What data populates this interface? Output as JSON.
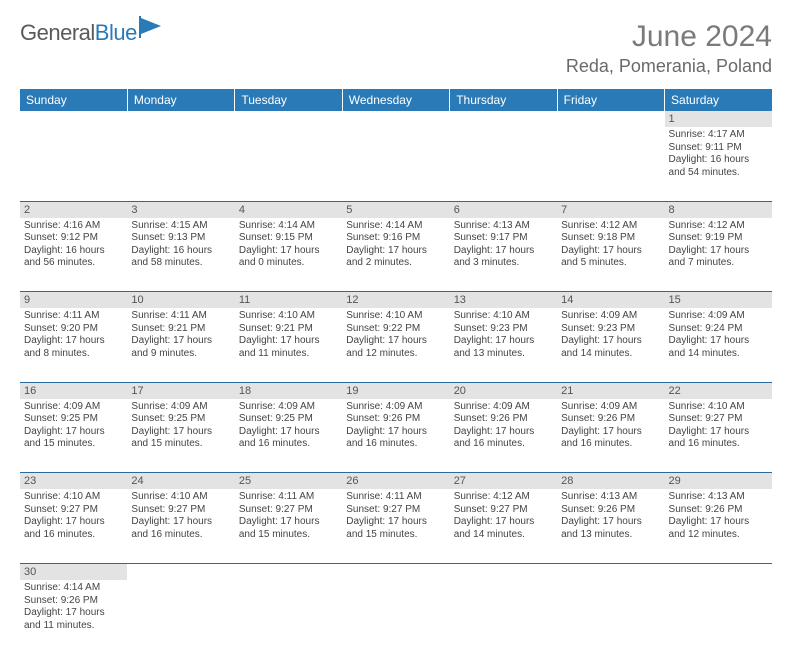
{
  "brand": {
    "part1": "General",
    "part2": "Blue"
  },
  "title": "June 2024",
  "location": "Reda, Pomerania, Poland",
  "colors": {
    "header_bg": "#2a7ab8",
    "header_text": "#ffffff",
    "daynum_bg": "#e3e3e3",
    "row_border": "#2a6aa0",
    "title_color": "#7a7a7a",
    "location_color": "#6a6a6a"
  },
  "weekdays": [
    "Sunday",
    "Monday",
    "Tuesday",
    "Wednesday",
    "Thursday",
    "Friday",
    "Saturday"
  ],
  "weeks": [
    {
      "days": [
        null,
        null,
        null,
        null,
        null,
        null,
        {
          "n": "1",
          "sunrise": "Sunrise: 4:17 AM",
          "sunset": "Sunset: 9:11 PM",
          "day1": "Daylight: 16 hours",
          "day2": "and 54 minutes."
        }
      ]
    },
    {
      "days": [
        {
          "n": "2",
          "sunrise": "Sunrise: 4:16 AM",
          "sunset": "Sunset: 9:12 PM",
          "day1": "Daylight: 16 hours",
          "day2": "and 56 minutes."
        },
        {
          "n": "3",
          "sunrise": "Sunrise: 4:15 AM",
          "sunset": "Sunset: 9:13 PM",
          "day1": "Daylight: 16 hours",
          "day2": "and 58 minutes."
        },
        {
          "n": "4",
          "sunrise": "Sunrise: 4:14 AM",
          "sunset": "Sunset: 9:15 PM",
          "day1": "Daylight: 17 hours",
          "day2": "and 0 minutes."
        },
        {
          "n": "5",
          "sunrise": "Sunrise: 4:14 AM",
          "sunset": "Sunset: 9:16 PM",
          "day1": "Daylight: 17 hours",
          "day2": "and 2 minutes."
        },
        {
          "n": "6",
          "sunrise": "Sunrise: 4:13 AM",
          "sunset": "Sunset: 9:17 PM",
          "day1": "Daylight: 17 hours",
          "day2": "and 3 minutes."
        },
        {
          "n": "7",
          "sunrise": "Sunrise: 4:12 AM",
          "sunset": "Sunset: 9:18 PM",
          "day1": "Daylight: 17 hours",
          "day2": "and 5 minutes."
        },
        {
          "n": "8",
          "sunrise": "Sunrise: 4:12 AM",
          "sunset": "Sunset: 9:19 PM",
          "day1": "Daylight: 17 hours",
          "day2": "and 7 minutes."
        }
      ]
    },
    {
      "days": [
        {
          "n": "9",
          "sunrise": "Sunrise: 4:11 AM",
          "sunset": "Sunset: 9:20 PM",
          "day1": "Daylight: 17 hours",
          "day2": "and 8 minutes."
        },
        {
          "n": "10",
          "sunrise": "Sunrise: 4:11 AM",
          "sunset": "Sunset: 9:21 PM",
          "day1": "Daylight: 17 hours",
          "day2": "and 9 minutes."
        },
        {
          "n": "11",
          "sunrise": "Sunrise: 4:10 AM",
          "sunset": "Sunset: 9:21 PM",
          "day1": "Daylight: 17 hours",
          "day2": "and 11 minutes."
        },
        {
          "n": "12",
          "sunrise": "Sunrise: 4:10 AM",
          "sunset": "Sunset: 9:22 PM",
          "day1": "Daylight: 17 hours",
          "day2": "and 12 minutes."
        },
        {
          "n": "13",
          "sunrise": "Sunrise: 4:10 AM",
          "sunset": "Sunset: 9:23 PM",
          "day1": "Daylight: 17 hours",
          "day2": "and 13 minutes."
        },
        {
          "n": "14",
          "sunrise": "Sunrise: 4:09 AM",
          "sunset": "Sunset: 9:23 PM",
          "day1": "Daylight: 17 hours",
          "day2": "and 14 minutes."
        },
        {
          "n": "15",
          "sunrise": "Sunrise: 4:09 AM",
          "sunset": "Sunset: 9:24 PM",
          "day1": "Daylight: 17 hours",
          "day2": "and 14 minutes."
        }
      ]
    },
    {
      "days": [
        {
          "n": "16",
          "sunrise": "Sunrise: 4:09 AM",
          "sunset": "Sunset: 9:25 PM",
          "day1": "Daylight: 17 hours",
          "day2": "and 15 minutes."
        },
        {
          "n": "17",
          "sunrise": "Sunrise: 4:09 AM",
          "sunset": "Sunset: 9:25 PM",
          "day1": "Daylight: 17 hours",
          "day2": "and 15 minutes."
        },
        {
          "n": "18",
          "sunrise": "Sunrise: 4:09 AM",
          "sunset": "Sunset: 9:25 PM",
          "day1": "Daylight: 17 hours",
          "day2": "and 16 minutes."
        },
        {
          "n": "19",
          "sunrise": "Sunrise: 4:09 AM",
          "sunset": "Sunset: 9:26 PM",
          "day1": "Daylight: 17 hours",
          "day2": "and 16 minutes."
        },
        {
          "n": "20",
          "sunrise": "Sunrise: 4:09 AM",
          "sunset": "Sunset: 9:26 PM",
          "day1": "Daylight: 17 hours",
          "day2": "and 16 minutes."
        },
        {
          "n": "21",
          "sunrise": "Sunrise: 4:09 AM",
          "sunset": "Sunset: 9:26 PM",
          "day1": "Daylight: 17 hours",
          "day2": "and 16 minutes."
        },
        {
          "n": "22",
          "sunrise": "Sunrise: 4:10 AM",
          "sunset": "Sunset: 9:27 PM",
          "day1": "Daylight: 17 hours",
          "day2": "and 16 minutes."
        }
      ]
    },
    {
      "days": [
        {
          "n": "23",
          "sunrise": "Sunrise: 4:10 AM",
          "sunset": "Sunset: 9:27 PM",
          "day1": "Daylight: 17 hours",
          "day2": "and 16 minutes."
        },
        {
          "n": "24",
          "sunrise": "Sunrise: 4:10 AM",
          "sunset": "Sunset: 9:27 PM",
          "day1": "Daylight: 17 hours",
          "day2": "and 16 minutes."
        },
        {
          "n": "25",
          "sunrise": "Sunrise: 4:11 AM",
          "sunset": "Sunset: 9:27 PM",
          "day1": "Daylight: 17 hours",
          "day2": "and 15 minutes."
        },
        {
          "n": "26",
          "sunrise": "Sunrise: 4:11 AM",
          "sunset": "Sunset: 9:27 PM",
          "day1": "Daylight: 17 hours",
          "day2": "and 15 minutes."
        },
        {
          "n": "27",
          "sunrise": "Sunrise: 4:12 AM",
          "sunset": "Sunset: 9:27 PM",
          "day1": "Daylight: 17 hours",
          "day2": "and 14 minutes."
        },
        {
          "n": "28",
          "sunrise": "Sunrise: 4:13 AM",
          "sunset": "Sunset: 9:26 PM",
          "day1": "Daylight: 17 hours",
          "day2": "and 13 minutes."
        },
        {
          "n": "29",
          "sunrise": "Sunrise: 4:13 AM",
          "sunset": "Sunset: 9:26 PM",
          "day1": "Daylight: 17 hours",
          "day2": "and 12 minutes."
        }
      ]
    },
    {
      "days": [
        {
          "n": "30",
          "sunrise": "Sunrise: 4:14 AM",
          "sunset": "Sunset: 9:26 PM",
          "day1": "Daylight: 17 hours",
          "day2": "and 11 minutes."
        },
        null,
        null,
        null,
        null,
        null,
        null
      ]
    }
  ]
}
